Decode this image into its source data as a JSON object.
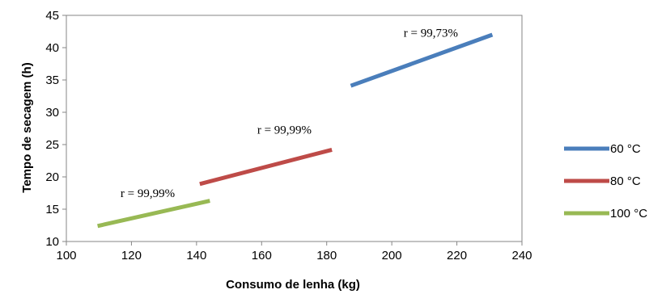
{
  "chart_data": {
    "type": "line",
    "title": "",
    "xlabel": "Consumo de lenha (kg)",
    "ylabel": "Tempo de secagem (h)",
    "xlim": [
      100,
      240
    ],
    "ylim": [
      10,
      45
    ],
    "xticks": [
      "100",
      "120",
      "140",
      "160",
      "180",
      "200",
      "220",
      "240"
    ],
    "yticks": [
      "10",
      "15",
      "20",
      "25",
      "30",
      "35",
      "40",
      "45"
    ],
    "grid": false,
    "legend_position": "right",
    "series": [
      {
        "name": "60 °C",
        "color": "#4a7ebb",
        "points": [
          [
            187.4,
            34.1
          ],
          [
            230.9,
            42.0
          ]
        ],
        "annotation": {
          "text": "r = 99,73%",
          "x": 212,
          "y": 41.7
        }
      },
      {
        "name": "80 °C",
        "color": "#be4b48",
        "points": [
          [
            141.0,
            18.9
          ],
          [
            181.6,
            24.2
          ]
        ],
        "annotation": {
          "text": "r = 99,99%",
          "x": 167,
          "y": 26.7
        }
      },
      {
        "name": "100 °C",
        "color": "#98b954",
        "points": [
          [
            109.6,
            12.4
          ],
          [
            144.1,
            16.3
          ]
        ],
        "annotation": {
          "text": "r = 99,99%",
          "x": 125,
          "y": 16.9
        }
      }
    ]
  }
}
